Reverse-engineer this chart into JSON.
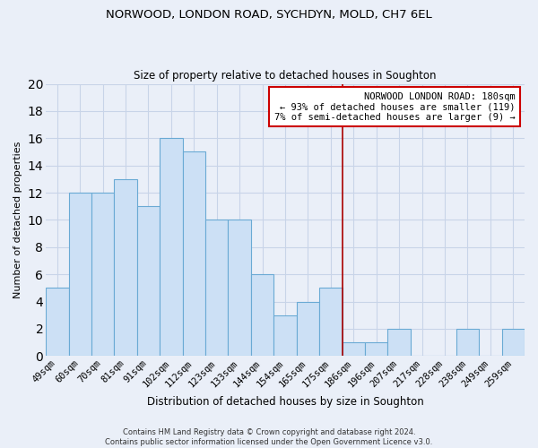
{
  "title": "NORWOOD, LONDON ROAD, SYCHDYN, MOLD, CH7 6EL",
  "subtitle": "Size of property relative to detached houses in Soughton",
  "xlabel_bottom": "Distribution of detached houses by size in Soughton",
  "ylabel": "Number of detached properties",
  "categories": [
    "49sqm",
    "60sqm",
    "70sqm",
    "81sqm",
    "91sqm",
    "102sqm",
    "112sqm",
    "123sqm",
    "133sqm",
    "144sqm",
    "154sqm",
    "165sqm",
    "175sqm",
    "186sqm",
    "196sqm",
    "207sqm",
    "217sqm",
    "228sqm",
    "238sqm",
    "249sqm",
    "259sqm"
  ],
  "values": [
    5,
    12,
    12,
    13,
    11,
    16,
    15,
    10,
    10,
    6,
    3,
    4,
    5,
    1,
    1,
    2,
    0,
    0,
    2,
    0,
    2
  ],
  "bar_color": "#cce0f5",
  "bar_edge_color": "#6aaad4",
  "grid_color": "#c8d4e8",
  "background_color": "#eaeff8",
  "property_line_x": 12.5,
  "property_line_color": "#aa0000",
  "annotation_text": "NORWOOD LONDON ROAD: 180sqm\n← 93% of detached houses are smaller (119)\n7% of semi-detached houses are larger (9) →",
  "annotation_box_color": "#ffffff",
  "annotation_edge_color": "#cc0000",
  "ylim": [
    0,
    20
  ],
  "yticks": [
    0,
    2,
    4,
    6,
    8,
    10,
    12,
    14,
    16,
    18,
    20
  ],
  "footer": "Contains HM Land Registry data © Crown copyright and database right 2024.\nContains public sector information licensed under the Open Government Licence v3.0.",
  "title_fontsize": 9.5,
  "subtitle_fontsize": 8.5,
  "ylabel_fontsize": 8,
  "xlabel_fontsize": 8.5,
  "tick_fontsize": 7.5,
  "annotation_fontsize": 7.5,
  "footer_fontsize": 6.0
}
